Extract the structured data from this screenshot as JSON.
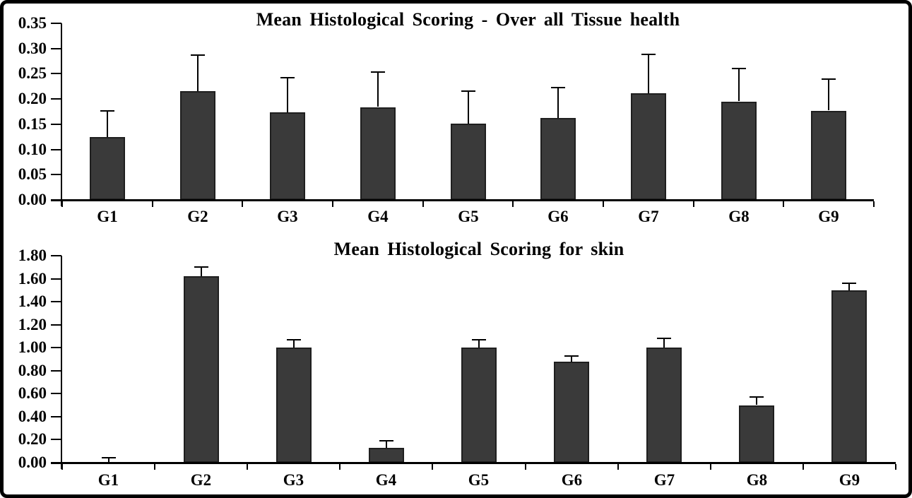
{
  "figure": {
    "background": "#ffffff",
    "border_color": "#000000"
  },
  "chart_data": [
    {
      "type": "bar",
      "title": "Mean Histological Scoring - Over all Tissue health",
      "categories": [
        "G1",
        "G2",
        "G3",
        "G4",
        "G5",
        "G6",
        "G7",
        "G8",
        "G9"
      ],
      "values": [
        0.125,
        0.215,
        0.173,
        0.184,
        0.151,
        0.163,
        0.212,
        0.195,
        0.177
      ],
      "error_plus": [
        0.052,
        0.072,
        0.069,
        0.069,
        0.064,
        0.06,
        0.077,
        0.065,
        0.062
      ],
      "xlabel": "",
      "ylabel": "",
      "ylim": [
        0,
        0.35
      ],
      "ytick_step": 0.05,
      "ytick_decimals": 2,
      "ytick_labels": [
        "0.00",
        "0.05",
        "0.10",
        "0.15",
        "0.20",
        "0.25",
        "0.30",
        "0.35"
      ],
      "grid": false,
      "legend": false,
      "bar_fill": "#3a3a3a",
      "bar_border": "#1f1f1f",
      "axis_color": "#000000",
      "text_color": "#000000"
    },
    {
      "type": "bar",
      "title": "Mean Histological Scoring for skin",
      "categories": [
        "G1",
        "G2",
        "G3",
        "G4",
        "G5",
        "G6",
        "G7",
        "G8",
        "G9"
      ],
      "values": [
        0.0,
        1.62,
        1.0,
        0.13,
        1.0,
        0.88,
        1.0,
        0.5,
        1.5
      ],
      "error_plus": [
        0.04,
        0.08,
        0.07,
        0.06,
        0.07,
        0.05,
        0.08,
        0.07,
        0.06
      ],
      "xlabel": "",
      "ylabel": "",
      "ylim": [
        0,
        1.8
      ],
      "ytick_step": 0.2,
      "ytick_decimals": 2,
      "ytick_labels": [
        "0.00",
        "0.20",
        "0.40",
        "0.60",
        "0.80",
        "1.00",
        "1.20",
        "1.40",
        "1.60",
        "1.80"
      ],
      "grid": false,
      "legend": false,
      "bar_fill": "#3a3a3a",
      "bar_border": "#1f1f1f",
      "axis_color": "#000000",
      "text_color": "#000000"
    }
  ]
}
